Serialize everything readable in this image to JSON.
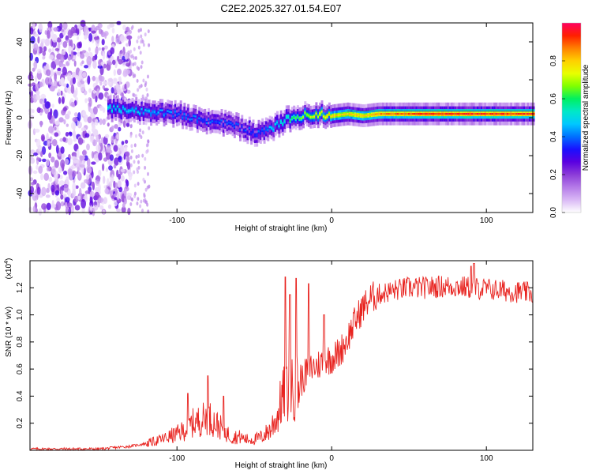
{
  "title": "C2E2.2025.327.01.54.E07",
  "colors": {
    "snr_line": "#e8231f",
    "frame": "#000000",
    "colormap": [
      "#ffffff",
      "#d9b8f5",
      "#b57be8",
      "#8c3cd8",
      "#5a00e0",
      "#1a10ff",
      "#0070ff",
      "#00c8ff",
      "#00e8c8",
      "#00f060",
      "#80ff00",
      "#e8ff00",
      "#ffd000",
      "#ff8000",
      "#ff2000",
      "#ff0060"
    ]
  },
  "chart_data": [
    {
      "id": "spectrogram",
      "type": "heatmap",
      "xlabel": "Height of straight line (km)",
      "ylabel": "Frequency (Hz)",
      "xlim": [
        -195,
        130
      ],
      "ylim": [
        -50,
        50
      ],
      "xticks": [
        -100,
        0,
        100
      ],
      "xtick_labels": [
        "-100",
        "0",
        "100"
      ],
      "yticks": [
        -40,
        -20,
        0,
        20,
        40
      ],
      "ytick_labels": [
        "-40",
        "-20",
        "0",
        "20",
        "40"
      ],
      "colorbar": {
        "label": "Normalized spectral amplitude",
        "range": [
          0,
          1
        ],
        "ticks": [
          0.0,
          0.2,
          0.4,
          0.6,
          0.8
        ],
        "tick_labels": [
          "0.0",
          "0.2",
          "0.4",
          "0.6",
          "0.8"
        ]
      },
      "ridge_centre_hz": {
        "x": [
          -145,
          -130,
          -115,
          -100,
          -90,
          -80,
          -70,
          -60,
          -50,
          -42,
          -36,
          -30,
          -20,
          -10,
          0,
          10,
          20,
          30,
          50,
          80,
          100,
          130
        ],
        "y": [
          5,
          4,
          3,
          2,
          0,
          -2,
          -3,
          -5,
          -8,
          -7,
          -4,
          -1,
          1,
          2,
          1,
          2,
          1,
          2,
          2,
          2,
          2,
          2
        ]
      },
      "ridge_amplitude": {
        "x": [
          -145,
          -120,
          -100,
          -80,
          -60,
          -45,
          -35,
          -25,
          -10,
          0,
          10,
          20,
          30,
          60,
          90,
          110,
          130
        ],
        "y": [
          0.5,
          0.45,
          0.4,
          0.38,
          0.35,
          0.38,
          0.5,
          0.6,
          0.75,
          0.8,
          0.8,
          0.82,
          0.85,
          0.92,
          0.93,
          0.92,
          0.92
        ]
      },
      "noise_region_km": [
        -195,
        -130
      ]
    },
    {
      "id": "snr",
      "type": "line",
      "xlabel": "Height of straight line (km)",
      "ylabel": "SNR (10 * v/v)",
      "yscale_label": "(x10",
      "yscale_exponent": "4",
      "xlim": [
        -195,
        130
      ],
      "ylim": [
        0,
        1.4
      ],
      "xticks": [
        -100,
        0,
        100
      ],
      "xtick_labels": [
        "-100",
        "0",
        "100"
      ],
      "yticks": [
        0.2,
        0.4,
        0.6,
        0.8,
        1.0,
        1.2
      ],
      "ytick_labels": [
        "0.2",
        "0.4",
        "0.6",
        "0.8",
        "1.0",
        "1.2"
      ],
      "series": [
        {
          "name": "SNR",
          "x": [
            -195,
            -150,
            -140,
            -130,
            -120,
            -110,
            -100,
            -95,
            -90,
            -85,
            -80,
            -75,
            -70,
            -65,
            -60,
            -55,
            -50,
            -45,
            -40,
            -35,
            -32,
            -28,
            -25,
            -20,
            -15,
            -10,
            -5,
            0,
            5,
            10,
            15,
            20,
            25,
            30,
            40,
            50,
            60,
            70,
            80,
            90,
            100,
            110,
            120,
            130
          ],
          "y": [
            0.01,
            0.01,
            0.02,
            0.03,
            0.05,
            0.08,
            0.12,
            0.15,
            0.2,
            0.22,
            0.25,
            0.2,
            0.15,
            0.1,
            0.1,
            0.08,
            0.08,
            0.1,
            0.15,
            0.25,
            0.4,
            0.42,
            0.45,
            0.5,
            0.6,
            0.62,
            0.66,
            0.68,
            0.72,
            0.82,
            0.95,
            1.05,
            1.12,
            1.15,
            1.18,
            1.2,
            1.2,
            1.21,
            1.21,
            1.2,
            1.19,
            1.18,
            1.17,
            1.16
          ]
        }
      ],
      "spikes": {
        "x": [
          -93,
          -80,
          -70,
          -30,
          -27,
          -23,
          -15,
          -5,
          90,
          92
        ],
        "y": [
          0.42,
          0.55,
          0.4,
          1.28,
          1.15,
          1.27,
          1.23,
          1.0,
          1.36,
          1.38
        ]
      }
    }
  ]
}
